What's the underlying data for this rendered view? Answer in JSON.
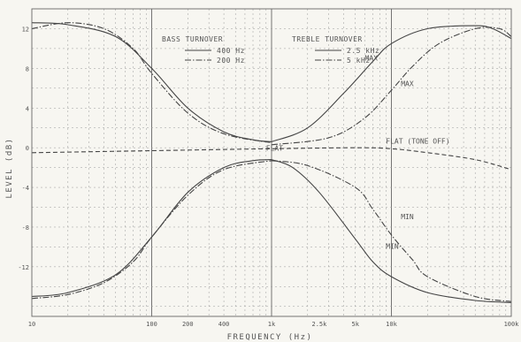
{
  "chart_data": {
    "type": "line",
    "xlabel": "FREQUENCY (Hz)",
    "ylabel": "LEVEL (dB)",
    "x_scale": "log",
    "xlim": [
      10,
      100000
    ],
    "ylim": [
      -17,
      14
    ],
    "grid": true,
    "x_ticks": [
      {
        "value": 10,
        "label": "10"
      },
      {
        "value": 100,
        "label": "100"
      },
      {
        "value": 200,
        "label": "200"
      },
      {
        "value": 400,
        "label": "400"
      },
      {
        "value": 1000,
        "label": "1k"
      },
      {
        "value": 2500,
        "label": "2.5k"
      },
      {
        "value": 5000,
        "label": "5k"
      },
      {
        "value": 10000,
        "label": "10k"
      },
      {
        "value": 100000,
        "label": "100k"
      }
    ],
    "y_ticks": [
      {
        "value": 12,
        "label": "12"
      },
      {
        "value": 8,
        "label": "8"
      },
      {
        "value": 4,
        "label": "4"
      },
      {
        "value": 0,
        "label": "0"
      },
      {
        "value": -4,
        "label": "-4"
      },
      {
        "value": -8,
        "label": "-8"
      },
      {
        "value": -12,
        "label": "-12"
      }
    ],
    "legend": {
      "placement": "top-center",
      "groups": [
        {
          "title": "BASS TURNOVER",
          "entries": [
            {
              "label": "400 Hz",
              "style": "solid"
            },
            {
              "label": "200 Hz",
              "style": "dashdot"
            }
          ]
        },
        {
          "title": "TREBLE TURNOVER",
          "entries": [
            {
              "label": "2.5 kHz",
              "style": "solid"
            },
            {
              "label": "5 kHz",
              "style": "dashdot"
            }
          ]
        }
      ]
    },
    "annotations": [
      {
        "text": "MAX",
        "x": 6000,
        "y": 8.8
      },
      {
        "text": "MAX",
        "x": 12000,
        "y": 6.2
      },
      {
        "text": "FLAT (TONE OFF)",
        "x": 9000,
        "y": 0.4
      },
      {
        "text": "FLAT",
        "x": 900,
        "y": -0.3
      },
      {
        "text": "MIN",
        "x": 12000,
        "y": -7.2
      },
      {
        "text": "MIN",
        "x": 9000,
        "y": -10.2
      }
    ],
    "series": [
      {
        "style": "solid",
        "x": [
          10,
          20,
          50,
          100,
          200,
          400,
          700,
          1000
        ],
        "y": [
          12.6,
          12.4,
          11.2,
          8.0,
          4.0,
          1.6,
          0.8,
          0.6
        ]
      },
      {
        "style": "dashdot",
        "x": [
          10,
          20,
          40,
          70,
          100,
          200,
          400,
          1000
        ],
        "y": [
          12.0,
          12.6,
          12.0,
          10.0,
          7.5,
          3.5,
          1.4,
          0.5
        ]
      },
      {
        "style": "solid",
        "x": [
          1000,
          2000,
          4000,
          7000,
          10000,
          20000,
          50000,
          70000,
          100000
        ],
        "y": [
          0.6,
          2.0,
          5.5,
          8.7,
          10.5,
          12.0,
          12.3,
          12.0,
          11.0
        ]
      },
      {
        "style": "dashdot",
        "x": [
          1000,
          3000,
          6000,
          10000,
          15000,
          25000,
          50000,
          80000,
          100000
        ],
        "y": [
          0.3,
          1.0,
          3.0,
          5.8,
          8.2,
          10.5,
          12.0,
          12.0,
          11.2
        ]
      },
      {
        "style": "solid",
        "x": [
          10,
          20,
          50,
          100,
          200,
          400,
          700,
          1000
        ],
        "y": [
          -15.0,
          -14.6,
          -12.8,
          -9.0,
          -4.5,
          -2.0,
          -1.3,
          -1.2
        ]
      },
      {
        "style": "dashdot",
        "x": [
          10,
          20,
          40,
          70,
          100,
          200,
          400,
          1000
        ],
        "y": [
          -15.2,
          -14.8,
          -13.6,
          -11.5,
          -9.0,
          -4.8,
          -2.2,
          -1.3
        ]
      },
      {
        "style": "solid",
        "x": [
          1000,
          1500,
          2500,
          5000,
          7000,
          10000,
          20000,
          50000,
          100000
        ],
        "y": [
          -1.2,
          -2.0,
          -4.5,
          -9.2,
          -11.5,
          -13.0,
          -14.6,
          -15.4,
          -15.6
        ]
      },
      {
        "style": "dashdot",
        "x": [
          1000,
          2000,
          5000,
          7000,
          10000,
          15000,
          20000,
          50000,
          100000
        ],
        "y": [
          -1.3,
          -1.8,
          -4.0,
          -6.2,
          -8.8,
          -11.3,
          -13.0,
          -15.0,
          -15.5
        ]
      },
      {
        "style": "dashed",
        "x": [
          10,
          100,
          1000,
          5000,
          10000,
          20000,
          50000,
          100000
        ],
        "y": [
          -0.5,
          -0.3,
          -0.1,
          0.0,
          -0.1,
          -0.5,
          -1.2,
          -2.2
        ]
      }
    ]
  }
}
